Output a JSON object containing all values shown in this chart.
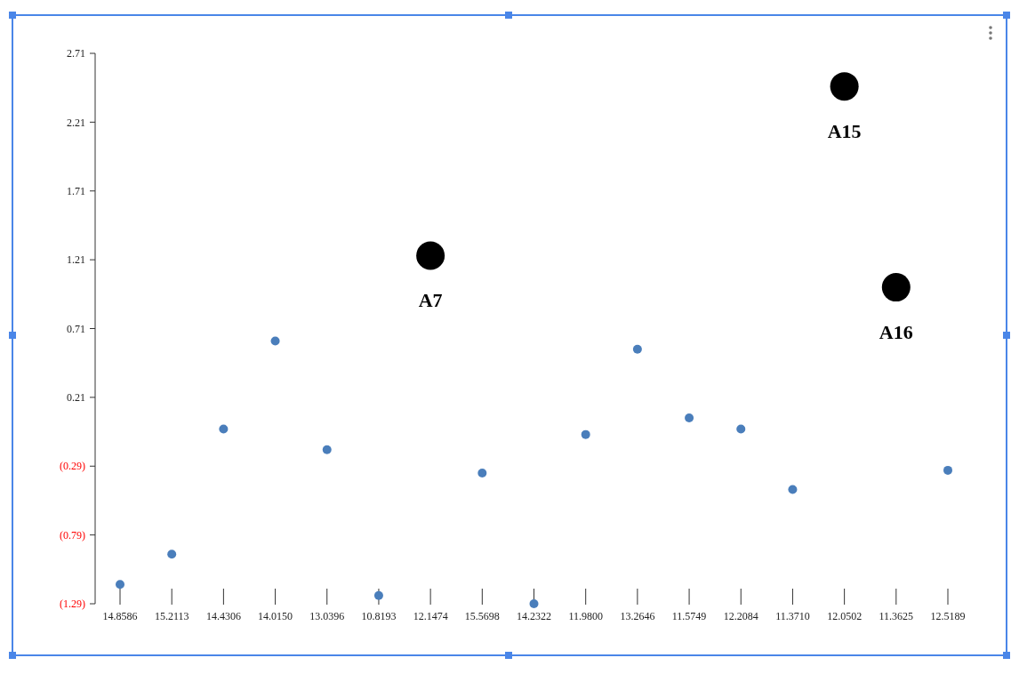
{
  "chart_data": {
    "type": "scatter",
    "categories": [
      "14.8586",
      "15.2113",
      "14.4306",
      "14.0150",
      "13.0396",
      "10.8193",
      "12.1474",
      "15.5698",
      "14.2322",
      "11.9800",
      "13.2646",
      "11.5749",
      "12.2084",
      "11.3710",
      "12.0502",
      "11.3625",
      "12.5189"
    ],
    "series": [
      {
        "color": "#4a7ebb",
        "values": [
          -1.15,
          -0.93,
          -0.02,
          0.62,
          -0.17,
          -1.23,
          null,
          -0.34,
          -1.29,
          -0.06,
          0.56,
          0.06,
          -0.02,
          -0.46,
          null,
          null,
          -0.32
        ]
      },
      {
        "color": "#000000",
        "values": [
          null,
          null,
          null,
          null,
          null,
          null,
          1.24,
          null,
          null,
          null,
          null,
          null,
          null,
          null,
          2.47,
          1.01,
          null
        ]
      }
    ],
    "ylim": [
      -1.29,
      2.71
    ],
    "yticks": [
      {
        "value": -1.29,
        "label": "(1.29)"
      },
      {
        "value": -0.79,
        "label": "(0.79)"
      },
      {
        "value": -0.29,
        "label": "(0.29)"
      },
      0.21,
      0.71,
      1.21,
      1.71,
      2.21,
      2.71
    ],
    "annotations": [
      {
        "text": "A7",
        "x": "12.1474",
        "y": 1.24
      },
      {
        "text": "A15",
        "x": "12.0502",
        "y": 2.47
      },
      {
        "text": "A16",
        "x": "11.3625",
        "y": 1.01
      }
    ],
    "grid": false,
    "marker": "circle"
  }
}
